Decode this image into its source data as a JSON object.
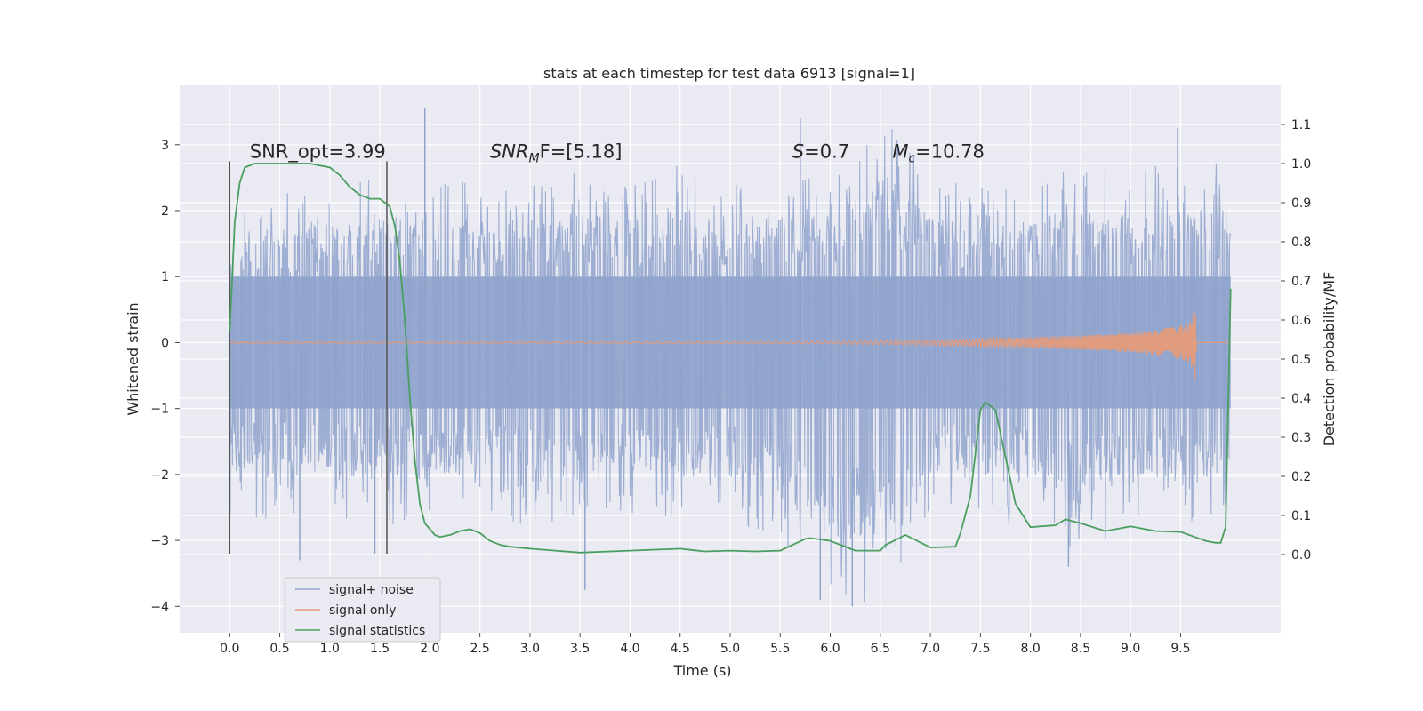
{
  "chart_data": {
    "type": "line",
    "title": "stats at each timestep for test data 6913 [signal=1]",
    "xlabel": "Time (s)",
    "ylabel_left": "Whitened strain",
    "ylabel_right": "Detection probability/MF",
    "xlim": [
      -0.5,
      10.5
    ],
    "ylim_left": [
      -4.4,
      3.9
    ],
    "ylim_right": [
      -0.2,
      1.2
    ],
    "x_ticks": [
      "0.0",
      "0.5",
      "1.0",
      "1.5",
      "2.0",
      "2.5",
      "3.0",
      "3.5",
      "4.0",
      "4.5",
      "5.0",
      "5.5",
      "6.0",
      "6.5",
      "7.0",
      "7.5",
      "8.0",
      "8.5",
      "9.0",
      "9.5"
    ],
    "y_ticks_left": [
      "3",
      "2",
      "1",
      "0",
      "−1",
      "−2",
      "−3",
      "−4"
    ],
    "y_ticks_right": [
      "1.1",
      "1.0",
      "0.9",
      "0.8",
      "0.7",
      "0.6",
      "0.5",
      "0.4",
      "0.3",
      "0.2",
      "0.1",
      "0.0"
    ],
    "grid": true,
    "legend_position": "lower-left",
    "annotations": [
      {
        "text": "SNR_opt=3.99",
        "x": 0.2,
        "y": 2.8
      },
      {
        "text": "SNR",
        "sub": "M",
        "rest": "F=[5.18]",
        "x": 2.6,
        "y": 2.8
      },
      {
        "text": "S",
        "rest": "=0.7",
        "x": 5.62,
        "y": 2.8
      },
      {
        "text": "M",
        "sub": "c",
        "rest": "=10.78",
        "x": 6.62,
        "y": 2.8
      }
    ],
    "vlines": [
      {
        "x": 0.0,
        "y": [
          -3.2,
          2.75
        ]
      },
      {
        "x": 1.57,
        "y": [
          -3.2,
          2.75
        ]
      }
    ],
    "series": [
      {
        "name": "signal+ noise",
        "color": "#8fa3cc",
        "x_range": [
          0.0,
          10.0
        ],
        "envelope_upper": [
          1.9,
          2.3,
          2.4,
          2.6,
          2.7,
          2.5,
          2.4,
          2.6,
          2.5,
          2.7,
          2.4,
          2.5,
          2.6,
          3.5,
          2.6,
          2.4,
          2.5,
          2.7,
          2.6,
          2.8,
          2.7
        ],
        "envelope_lower": [
          -2.6,
          -2.7,
          -2.6,
          -2.9,
          -2.8,
          -2.6,
          -2.8,
          -2.9,
          -2.6,
          -2.7,
          -2.8,
          -3.0,
          -3.9,
          -4.0,
          -2.7,
          -2.6,
          -2.9,
          -3.4,
          -2.7,
          -2.8,
          -2.6
        ],
        "spikes": [
          {
            "x": 0.7,
            "y": -3.3
          },
          {
            "x": 1.45,
            "y": -3.2
          },
          {
            "x": 1.95,
            "y": 3.55
          },
          {
            "x": 3.55,
            "y": -3.75
          },
          {
            "x": 5.7,
            "y": 3.4
          },
          {
            "x": 5.9,
            "y": -3.9
          },
          {
            "x": 6.22,
            "y": -4.0
          },
          {
            "x": 8.38,
            "y": -3.4
          },
          {
            "x": 9.47,
            "y": 3.25
          }
        ]
      },
      {
        "name": "signal only",
        "color": "#e19c7f",
        "x": [
          0.0,
          5.0,
          6.0,
          7.0,
          7.5,
          8.0,
          8.5,
          9.0,
          9.3,
          9.5,
          9.6,
          9.65,
          9.66
        ],
        "amplitude": [
          0.005,
          0.01,
          0.02,
          0.04,
          0.06,
          0.08,
          0.11,
          0.15,
          0.2,
          0.26,
          0.32,
          0.58,
          0.0
        ]
      },
      {
        "name": "signal statistics",
        "color": "#4a9e5f",
        "axis": "right",
        "x": [
          0.0,
          0.05,
          0.1,
          0.15,
          0.25,
          0.4,
          0.6,
          0.8,
          1.0,
          1.1,
          1.2,
          1.3,
          1.4,
          1.5,
          1.55,
          1.6,
          1.65,
          1.7,
          1.75,
          1.8,
          1.85,
          1.9,
          1.95,
          2.0,
          2.05,
          2.1,
          2.2,
          2.3,
          2.4,
          2.5,
          2.6,
          2.7,
          2.8,
          3.0,
          3.25,
          3.5,
          4.0,
          4.5,
          4.6,
          4.75,
          5.0,
          5.25,
          5.5,
          5.75,
          5.8,
          6.0,
          6.25,
          6.5,
          6.55,
          6.75,
          7.0,
          7.25,
          7.3,
          7.4,
          7.5,
          7.55,
          7.6,
          7.65,
          7.75,
          7.85,
          8.0,
          8.25,
          8.35,
          8.5,
          8.75,
          9.0,
          9.25,
          9.5,
          9.75,
          9.85,
          9.9,
          9.95,
          10.0
        ],
        "y": [
          0.57,
          0.85,
          0.95,
          0.99,
          1.0,
          1.0,
          1.0,
          1.0,
          0.99,
          0.97,
          0.94,
          0.92,
          0.91,
          0.91,
          0.9,
          0.89,
          0.84,
          0.75,
          0.6,
          0.4,
          0.24,
          0.13,
          0.08,
          0.065,
          0.05,
          0.045,
          0.05,
          0.06,
          0.065,
          0.055,
          0.035,
          0.025,
          0.02,
          0.015,
          0.01,
          0.005,
          0.01,
          0.015,
          0.012,
          0.008,
          0.01,
          0.008,
          0.01,
          0.04,
          0.042,
          0.035,
          0.01,
          0.01,
          0.024,
          0.05,
          0.018,
          0.02,
          0.055,
          0.15,
          0.37,
          0.39,
          0.38,
          0.37,
          0.25,
          0.13,
          0.07,
          0.075,
          0.09,
          0.08,
          0.06,
          0.072,
          0.06,
          0.058,
          0.035,
          0.03,
          0.03,
          0.07,
          0.68
        ]
      }
    ]
  }
}
